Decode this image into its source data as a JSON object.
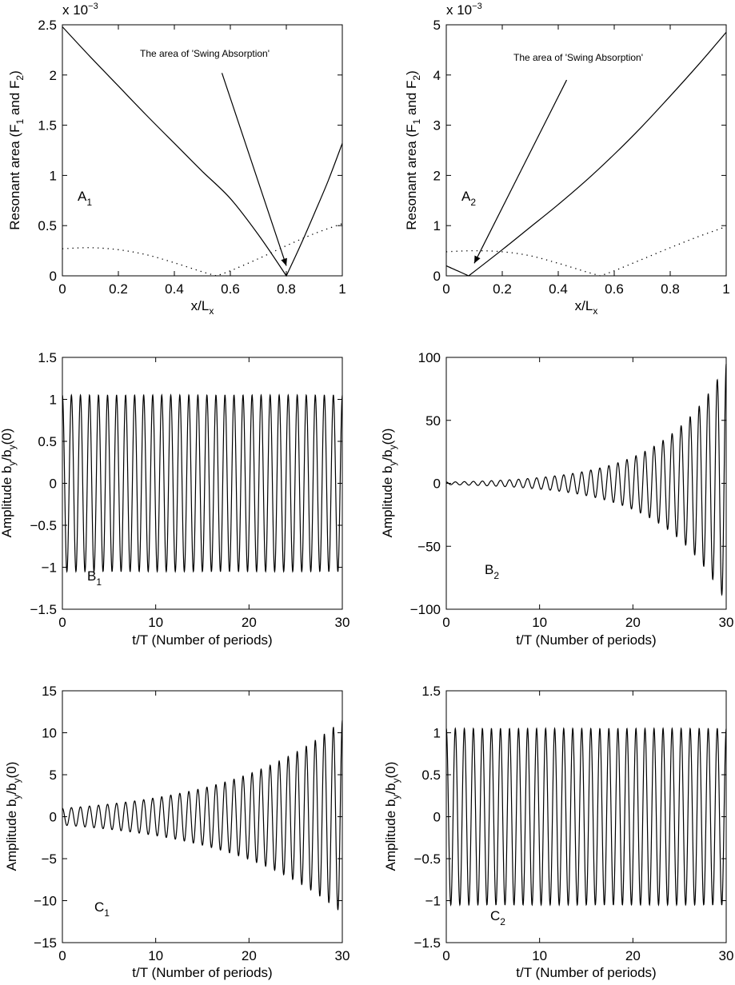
{
  "figure": {
    "panels": [
      {
        "id": "A1",
        "panel_label": {
          "main": "A",
          "sub": "1"
        },
        "xlabel": {
          "main": "x/L",
          "sub": "x"
        },
        "ylabel": {
          "pre": "Resonant area (F",
          "s1": "1",
          "mid": " and F",
          "s2": "2",
          "post": ")"
        },
        "exponent": {
          "base": "x 10",
          "sup": "−3"
        },
        "annotation": "The area of 'Swing Absorption'",
        "xticks": [
          "0",
          "0.2",
          "0.4",
          "0.6",
          "0.8",
          "1"
        ],
        "yticks": [
          "0",
          "0.5",
          "1",
          "1.5",
          "2",
          "2.5"
        ]
      },
      {
        "id": "A2",
        "panel_label": {
          "main": "A",
          "sub": "2"
        },
        "xlabel": {
          "main": "x/L",
          "sub": "x"
        },
        "ylabel": {
          "pre": "Resonant area (F",
          "s1": "1",
          "mid": " and F",
          "s2": "2",
          "post": ")"
        },
        "exponent": {
          "base": "x 10",
          "sup": "−3"
        },
        "annotation": "The area of 'Swing Absorption'",
        "xticks": [
          "0",
          "0.2",
          "0.4",
          "0.6",
          "0.8",
          "1"
        ],
        "yticks": [
          "0",
          "1",
          "2",
          "3",
          "4",
          "5"
        ]
      },
      {
        "id": "B1",
        "panel_label": {
          "main": "B",
          "sub": "1"
        },
        "xlabel": {
          "main": "t/T (Number of periods)",
          "sub": ""
        },
        "ylabel": {
          "pre": "Amplitude b",
          "s1": "y",
          "mid": "/b",
          "s2": "y",
          "post": "(0)"
        },
        "xticks": [
          "0",
          "10",
          "20",
          "30"
        ],
        "yticks": [
          "−1.5",
          "−1",
          "−0.5",
          "0",
          "0.5",
          "1",
          "1.5"
        ]
      },
      {
        "id": "B2",
        "panel_label": {
          "main": "B",
          "sub": "2"
        },
        "xlabel": {
          "main": "t/T (Number of periods)",
          "sub": ""
        },
        "ylabel": {
          "pre": "Amplitude b",
          "s1": "y",
          "mid": "/b",
          "s2": "y",
          "post": "(0)"
        },
        "xticks": [
          "0",
          "10",
          "20",
          "30"
        ],
        "yticks": [
          "−100",
          "−50",
          "0",
          "50",
          "100"
        ]
      },
      {
        "id": "C1",
        "panel_label": {
          "main": "C",
          "sub": "1"
        },
        "xlabel": {
          "main": "t/T (Number of periods)",
          "sub": ""
        },
        "ylabel": {
          "pre": "Amplitude b",
          "s1": "y",
          "mid": "/b",
          "s2": "y",
          "post": "(0)"
        },
        "xticks": [
          "0",
          "10",
          "20",
          "30"
        ],
        "yticks": [
          "−15",
          "−10",
          "−5",
          "0",
          "5",
          "10",
          "15"
        ]
      },
      {
        "id": "C2",
        "panel_label": {
          "main": "C",
          "sub": "2"
        },
        "xlabel": {
          "main": "t/T (Number of periods)",
          "sub": ""
        },
        "ylabel": {
          "pre": "Amplitude b",
          "s1": "y",
          "mid": "/b",
          "s2": "y",
          "post": "(0)"
        },
        "xticks": [
          "0",
          "10",
          "20",
          "30"
        ],
        "yticks": [
          "−1.5",
          "−1",
          "−0.5",
          "0",
          "0.5",
          "1",
          "1.5"
        ]
      }
    ]
  },
  "chart_data": [
    {
      "type": "line",
      "id": "A1",
      "xlim": [
        0,
        1
      ],
      "ylim": [
        0,
        2.5
      ],
      "y_multiplier": 0.001,
      "grid": false,
      "series": [
        {
          "style": "solid",
          "x": [
            0,
            0.1,
            0.2,
            0.3,
            0.4,
            0.5,
            0.6,
            0.7,
            0.8,
            0.85,
            0.9,
            0.95,
            1.0
          ],
          "y": [
            2.48,
            2.18,
            1.89,
            1.6,
            1.32,
            1.04,
            0.77,
            0.41,
            0.0,
            0.3,
            0.62,
            0.95,
            1.32
          ]
        },
        {
          "style": "dotted",
          "x": [
            0,
            0.1,
            0.2,
            0.3,
            0.4,
            0.5,
            0.55,
            0.6,
            0.7,
            0.8,
            0.9,
            1.0
          ],
          "y": [
            0.27,
            0.28,
            0.26,
            0.21,
            0.13,
            0.04,
            0.0,
            0.05,
            0.17,
            0.3,
            0.42,
            0.52
          ]
        }
      ],
      "annotation_arrow": {
        "from": [
          0.57,
          2.02
        ],
        "to": [
          0.8,
          0.1
        ]
      }
    },
    {
      "type": "line",
      "id": "A2",
      "xlim": [
        0,
        1
      ],
      "ylim": [
        0,
        5
      ],
      "y_multiplier": 0.001,
      "grid": false,
      "series": [
        {
          "style": "solid",
          "x": [
            0,
            0.04,
            0.08,
            0.2,
            0.3,
            0.4,
            0.5,
            0.6,
            0.7,
            0.8,
            0.9,
            1.0
          ],
          "y": [
            0.2,
            0.1,
            0.0,
            0.52,
            0.97,
            1.42,
            1.9,
            2.42,
            2.98,
            3.58,
            4.2,
            4.85
          ]
        },
        {
          "style": "dotted",
          "x": [
            0,
            0.1,
            0.2,
            0.3,
            0.4,
            0.5,
            0.55,
            0.6,
            0.7,
            0.8,
            0.9,
            1.0
          ],
          "y": [
            0.48,
            0.5,
            0.48,
            0.4,
            0.25,
            0.08,
            0.0,
            0.1,
            0.33,
            0.56,
            0.78,
            0.98
          ]
        }
      ],
      "annotation_arrow": {
        "from": [
          0.43,
          3.9
        ],
        "to": [
          0.1,
          0.25
        ]
      }
    },
    {
      "type": "line",
      "id": "B1",
      "xlim": [
        0,
        30
      ],
      "ylim": [
        -1.5,
        1.5
      ],
      "grid": false,
      "signal": {
        "kind": "oscillation",
        "cycles_per_unit": 1.033,
        "amplitude": {
          "model": "constant",
          "value": 1.05
        }
      }
    },
    {
      "type": "line",
      "id": "B2",
      "xlim": [
        0,
        30
      ],
      "ylim": [
        -100,
        100
      ],
      "grid": false,
      "signal": {
        "kind": "oscillation",
        "cycles_per_unit": 1.033,
        "amplitude": {
          "model": "exponential",
          "start": 1.0,
          "end": 95
        }
      }
    },
    {
      "type": "line",
      "id": "C1",
      "xlim": [
        0,
        30
      ],
      "ylim": [
        -15,
        15
      ],
      "grid": false,
      "signal": {
        "kind": "oscillation",
        "cycles_per_unit": 1.033,
        "amplitude": {
          "model": "exponential",
          "start": 1.0,
          "end": 11.5
        }
      }
    },
    {
      "type": "line",
      "id": "C2",
      "xlim": [
        0,
        30
      ],
      "ylim": [
        -1.5,
        1.5
      ],
      "grid": false,
      "signal": {
        "kind": "oscillation",
        "cycles_per_unit": 1.033,
        "amplitude": {
          "model": "constant",
          "value": 1.05
        }
      }
    }
  ]
}
